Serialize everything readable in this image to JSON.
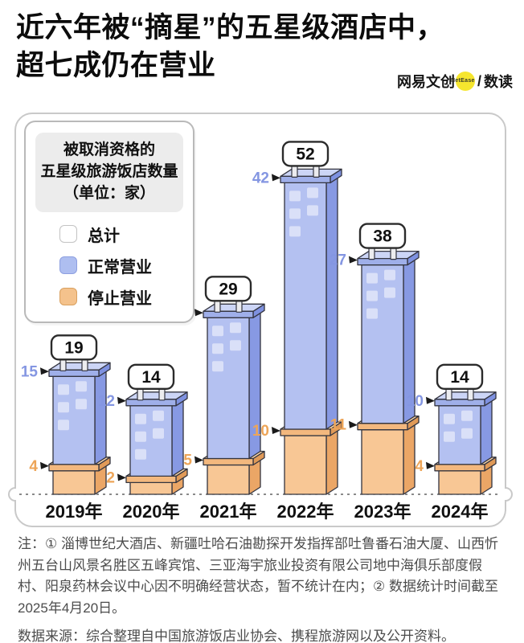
{
  "header": {
    "title_line1": "近六年被“摘星”的五星级酒店中，",
    "title_line2": "超七成仍在营业",
    "brand": {
      "name": "网易文创",
      "badge": "NetEase",
      "slash": "/",
      "sub": "数读"
    }
  },
  "legend": {
    "title_line1": "被取消资格的",
    "title_line2": "五星级旅游饭店数量",
    "title_line3": "（单位：家）",
    "items": [
      {
        "label": "总计",
        "color": "#ffffff",
        "border": "#c3c3c3"
      },
      {
        "label": "正常营业",
        "color": "#aebef0",
        "border": "#8d9fe0"
      },
      {
        "label": "停止营业",
        "color": "#f4c28c",
        "border": "#d9a05f"
      }
    ]
  },
  "chart_data": {
    "type": "bar",
    "stacked": true,
    "title": "被取消资格的五星级旅游饭店数量",
    "unit": "家",
    "categories": [
      "2019年",
      "2020年",
      "2021年",
      "2022年",
      "2023年",
      "2024年"
    ],
    "series": [
      {
        "name": "正常营业",
        "values": [
          15,
          12,
          24,
          42,
          27,
          10
        ],
        "color": "#b4c1f1"
      },
      {
        "name": "停止营业",
        "values": [
          4,
          2,
          5,
          10,
          11,
          4
        ],
        "color": "#f8c795"
      }
    ],
    "totals": [
      19,
      14,
      29,
      52,
      38,
      14
    ],
    "legend_position": "top-left",
    "baseline": "dashed",
    "ylim": [
      0,
      52
    ]
  },
  "footer": {
    "note": "注：① 淄博世纪大酒店、新疆吐哈石油勘探开发指挥部吐鲁番石油大厦、山西忻州五台山风景名胜区五峰宾馆、三亚海宇旅业投资有限公司地中海俱乐部度假村、阳泉药林会议中心因不明确经营状态，暂不统计在内；② 数据统计时间截至2025年4月20日。",
    "source": "数据来源：综合整理自中国旅游饭店业协会、携程旅游网以及公开资料。"
  },
  "palette": {
    "blue_front": "#b4c1f1",
    "blue_side": "#8799e3",
    "blue_cap_top": "#ccd5f6",
    "blue_cap_front": "#9fafe9",
    "blue_cap_side": "#7e91e0",
    "orange_front": "#f8c795",
    "orange_side": "#eba666",
    "orange_cap_top": "#fbd8ac",
    "orange_cap_front": "#f3b87e",
    "orange_cap_side": "#e09a58",
    "outline": "#33343f",
    "window": "rgba(255,255,255,0.5)",
    "label_blue": "#8496e2",
    "label_orange": "#eda558",
    "sign_bg": "#ffffff",
    "sign_border": "#2b2b2b",
    "sign_text": "#111111",
    "leg_fill": "#ececef",
    "baseline": "#444444",
    "year_text": "#111111",
    "arrow": "#1a1a1a"
  }
}
